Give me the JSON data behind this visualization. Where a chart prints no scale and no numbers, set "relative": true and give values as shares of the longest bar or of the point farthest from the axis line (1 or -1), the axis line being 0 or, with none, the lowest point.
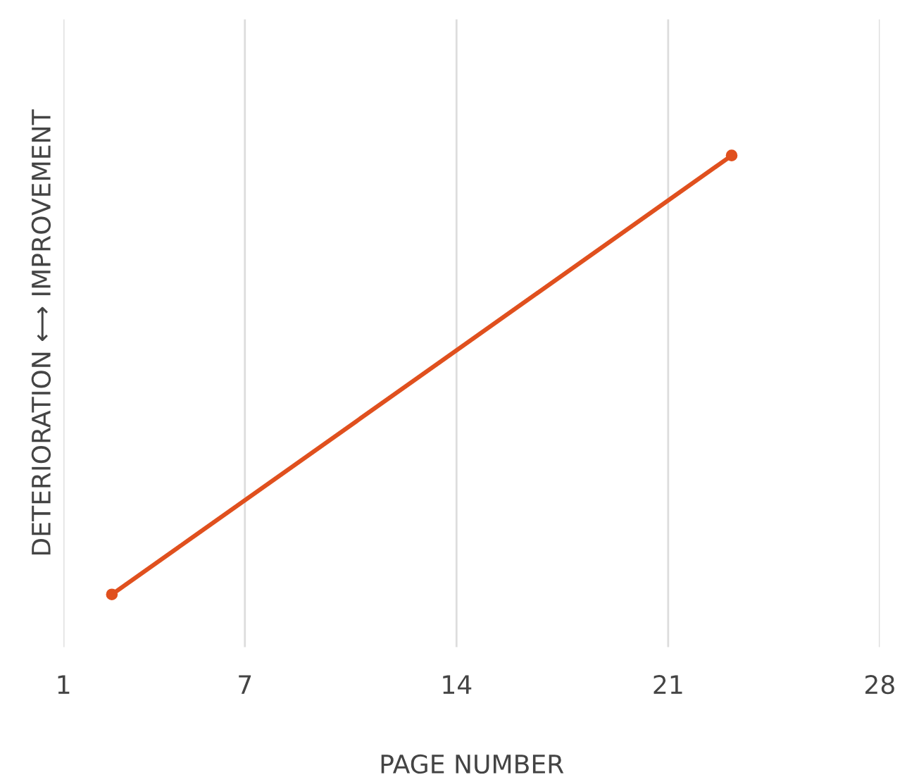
{
  "chart_data": {
    "type": "line",
    "relative": true,
    "xlabel": "PAGE NUMBER",
    "ylabel": "DETERIORATION ⟷ IMPROVEMENT",
    "x": [
      2.6,
      23.1
    ],
    "series": [
      {
        "color": "#e0501e",
        "values": [
          0,
          1
        ]
      }
    ],
    "xlim": [
      1,
      28
    ],
    "xticks": [
      1,
      7,
      14,
      21,
      28
    ],
    "grid": "x",
    "marker": "circle",
    "line_style": "solid",
    "legend": false
  }
}
